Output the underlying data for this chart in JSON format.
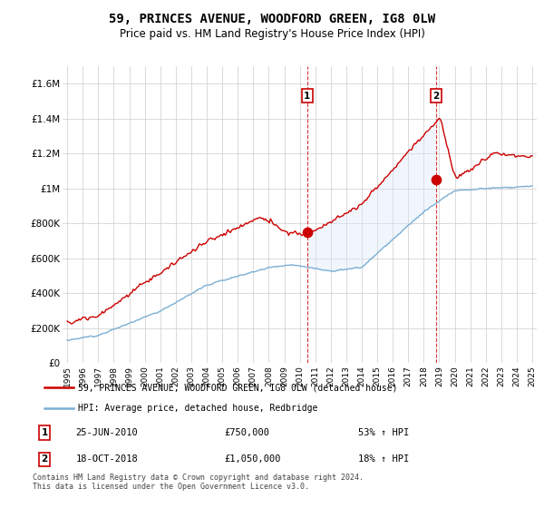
{
  "title": "59, PRINCES AVENUE, WOODFORD GREEN, IG8 0LW",
  "subtitle": "Price paid vs. HM Land Registry's House Price Index (HPI)",
  "ylim": [
    0,
    1700000
  ],
  "yticks": [
    0,
    200000,
    400000,
    600000,
    800000,
    1000000,
    1200000,
    1400000,
    1600000
  ],
  "ytick_labels": [
    "£0",
    "£200K",
    "£400K",
    "£600K",
    "£800K",
    "£1M",
    "£1.2M",
    "£1.4M",
    "£1.6M"
  ],
  "x_start_year": 1995,
  "x_end_year": 2025,
  "red_color": "#cc0000",
  "blue_color": "#7bafd4",
  "sale1_year": 2010.48,
  "sale1_price": 750000,
  "sale2_year": 2018.79,
  "sale2_price": 1050000,
  "legend_line1": "59, PRINCES AVENUE, WOODFORD GREEN, IG8 0LW (detached house)",
  "legend_line2": "HPI: Average price, detached house, Redbridge",
  "sale1_date": "25-JUN-2010",
  "sale1_amount": "£750,000",
  "sale1_pct": "53% ↑ HPI",
  "sale2_date": "18-OCT-2018",
  "sale2_amount": "£1,050,000",
  "sale2_pct": "18% ↑ HPI",
  "footnote1": "Contains HM Land Registry data © Crown copyright and database right 2024.",
  "footnote2": "This data is licensed under the Open Government Licence v3.0.",
  "shaded_color": "#d6e8f7",
  "background_color": "#ffffff",
  "grid_color": "#cccccc"
}
